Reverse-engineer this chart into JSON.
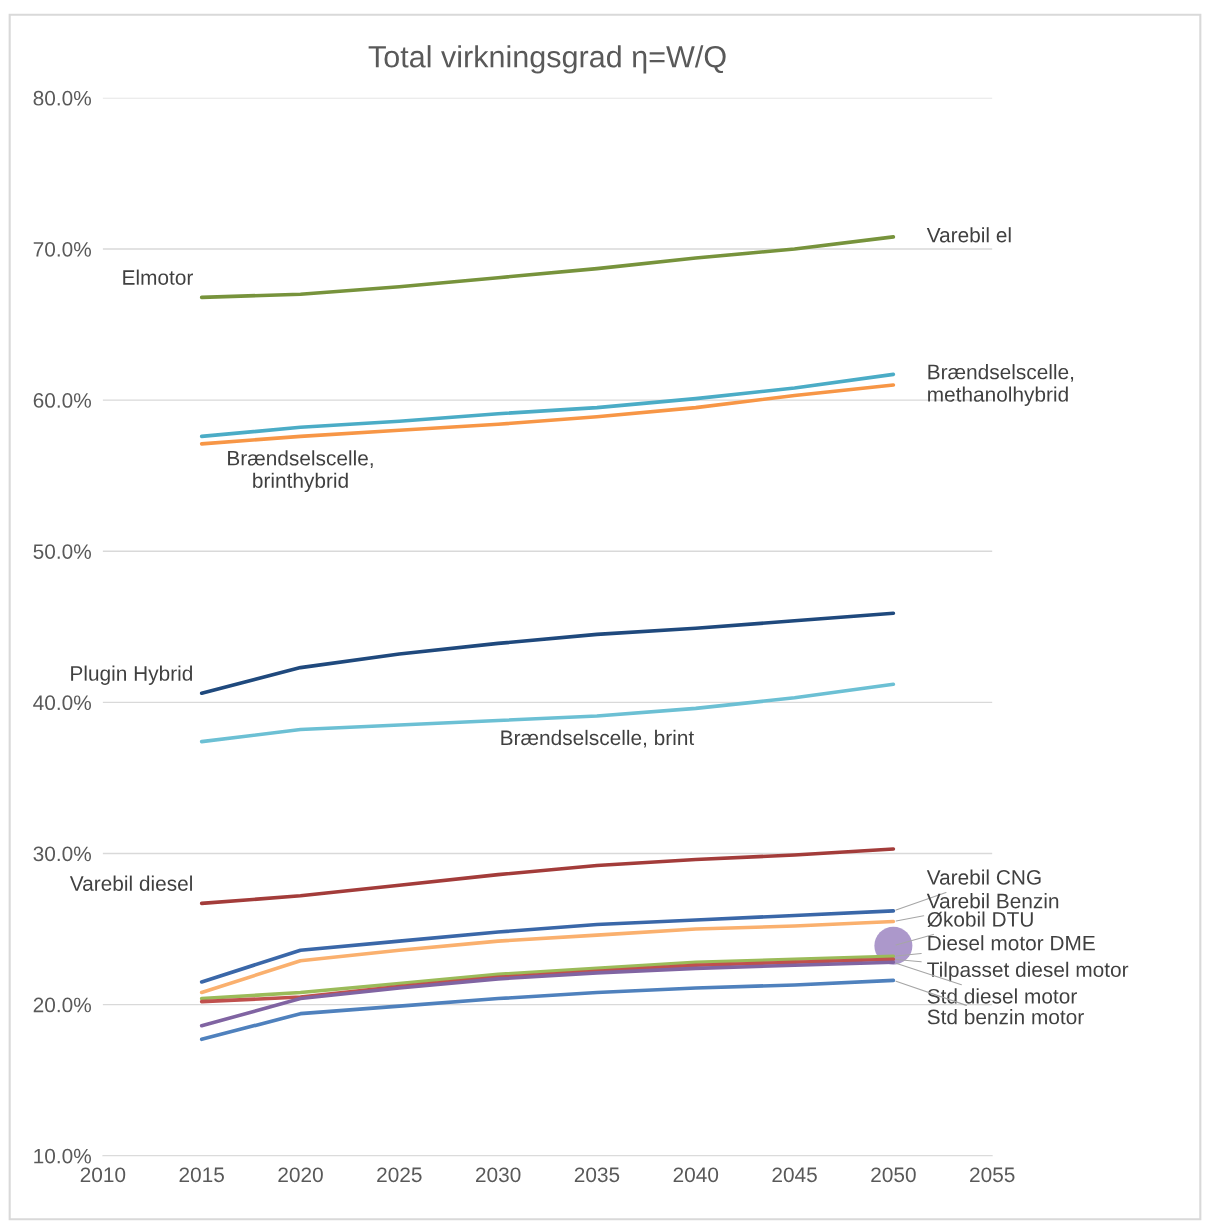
{
  "chart_data": {
    "type": "line",
    "title": "Total virkningsgrad η=W/Q",
    "x": [
      2015,
      2020,
      2025,
      2030,
      2035,
      2040,
      2045,
      2050
    ],
    "xlim": [
      2010,
      2055
    ],
    "xticks": [
      2010,
      2015,
      2020,
      2025,
      2030,
      2035,
      2040,
      2045,
      2050,
      2055
    ],
    "ylim": [
      10,
      80
    ],
    "yticks": [
      {
        "value": 10,
        "label": "10.0%"
      },
      {
        "value": 20,
        "label": "20.0%"
      },
      {
        "value": 30,
        "label": "30.0%"
      },
      {
        "value": 40,
        "label": "40.0%"
      },
      {
        "value": 50,
        "label": "50.0%"
      },
      {
        "value": 60,
        "label": "60.0%"
      },
      {
        "value": 70,
        "label": "70.0%"
      },
      {
        "value": 80,
        "label": "80.0%"
      }
    ],
    "grid": "y",
    "marker": "none",
    "line_style": "solid",
    "series": [
      {
        "color": "#77933c",
        "values": [
          66.8,
          67.0,
          67.5,
          68.1,
          68.7,
          69.4,
          70.0,
          70.8
        ]
      },
      {
        "color": "#4bacc6",
        "values": [
          57.6,
          58.2,
          58.6,
          59.1,
          59.5,
          60.1,
          60.8,
          61.7
        ]
      },
      {
        "color": "#f79646",
        "values": [
          57.1,
          57.6,
          58.0,
          58.4,
          58.9,
          59.5,
          60.3,
          61.0
        ]
      },
      {
        "color": "#1f497d",
        "values": [
          40.6,
          42.3,
          43.2,
          43.9,
          44.5,
          44.9,
          45.4,
          45.9
        ]
      },
      {
        "color": "#6cc0d4",
        "values": [
          37.4,
          38.2,
          38.5,
          38.8,
          39.1,
          39.6,
          40.3,
          41.2
        ]
      },
      {
        "color": "#a33c3a",
        "values": [
          26.7,
          27.2,
          27.9,
          28.6,
          29.2,
          29.6,
          29.9,
          30.3
        ]
      },
      {
        "color": "#3a67a8",
        "values": [
          21.5,
          23.6,
          24.2,
          24.8,
          25.3,
          25.6,
          25.9,
          26.2
        ]
      },
      {
        "color": "#fab06e",
        "values": [
          20.8,
          22.9,
          23.6,
          24.2,
          24.6,
          25.0,
          25.2,
          25.5
        ]
      },
      {
        "color": "#9bbb59",
        "values": [
          20.4,
          20.8,
          21.4,
          22.0,
          22.4,
          22.8,
          23.0,
          23.2
        ]
      },
      {
        "color": "#c0504d",
        "values": [
          20.2,
          20.5,
          21.2,
          21.8,
          22.2,
          22.6,
          22.8,
          23.0
        ]
      },
      {
        "color": "#8064a2",
        "values": [
          18.6,
          20.4,
          21.1,
          21.7,
          22.1,
          22.4,
          22.6,
          22.8
        ]
      },
      {
        "color": "#4f81bd",
        "values": [
          17.7,
          19.4,
          19.9,
          20.4,
          20.8,
          21.1,
          21.3,
          21.6
        ]
      },
      {
        "type": "scatter",
        "marker": "circle",
        "color": "#9e86c2",
        "x": [
          2050
        ],
        "values": [
          23.9
        ]
      }
    ],
    "annotations": [
      {
        "text": "Elmotor",
        "x": 2015,
        "y": 66.8
      },
      {
        "text": "Varebil el",
        "x": 2050,
        "y": 70.8
      },
      {
        "text": "Brændselscelle,\nbrinthybrid",
        "x": 2020,
        "y": 57.6
      },
      {
        "text": "Brændselscelle,\nmethanolhybrid",
        "x": 2050,
        "y": 61.0
      },
      {
        "text": "Plugin Hybrid",
        "x": 2015,
        "y": 40.6
      },
      {
        "text": "Brændselscelle, brint",
        "x": 2035,
        "y": 39.1
      },
      {
        "text": "Varebil diesel",
        "x": 2015,
        "y": 26.7
      },
      {
        "text": "Varebil CNG",
        "x": 2050,
        "y": 26.2
      },
      {
        "text": "Varebil Benzin",
        "x": 2050,
        "y": 25.5
      },
      {
        "text": "Økobil DTU",
        "x": 2050,
        "y": 23.9
      },
      {
        "text": "Diesel motor DME",
        "x": 2050,
        "y": 23.2
      },
      {
        "text": "Tilpasset diesel motor",
        "x": 2050,
        "y": 23.0
      },
      {
        "text": "Std diesel motor",
        "x": 2050,
        "y": 22.8
      },
      {
        "text": "Std benzin motor",
        "x": 2050,
        "y": 21.6
      }
    ]
  }
}
